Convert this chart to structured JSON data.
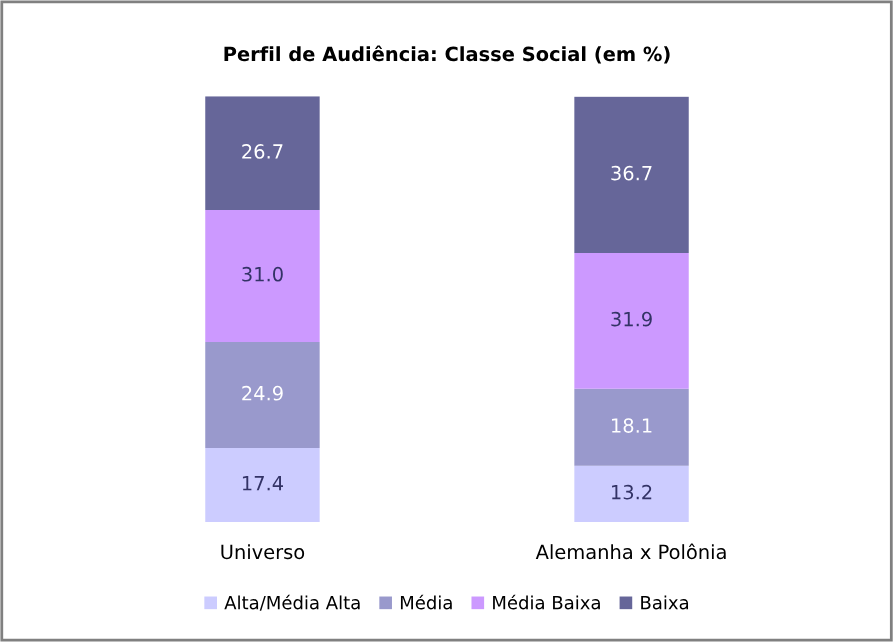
{
  "chart_data": {
    "type": "bar",
    "title": "Perfil de Audiência: Classe Social (em %)",
    "categories": [
      "Universo",
      "Alemanha x Polônia"
    ],
    "stacked": true,
    "legend": "bottom",
    "grid": false,
    "series": [
      {
        "name": "Alta/Média Alta",
        "color": "#ccccff",
        "values": [
          17.4,
          13.2
        ],
        "value_labels": [
          "17.4",
          "13.2"
        ]
      },
      {
        "name": "Média",
        "color": "#9999cc",
        "values": [
          24.9,
          18.1
        ],
        "value_labels": [
          "24.9",
          "18.1"
        ]
      },
      {
        "name": "Média Baixa",
        "color": "#cc99ff",
        "values": [
          31.0,
          31.9
        ],
        "value_labels": [
          "31.0",
          "31.9"
        ]
      },
      {
        "name": "Baixa",
        "color": "#666699",
        "values": [
          26.7,
          36.7
        ],
        "value_labels": [
          "26.7",
          "36.7"
        ]
      }
    ]
  }
}
